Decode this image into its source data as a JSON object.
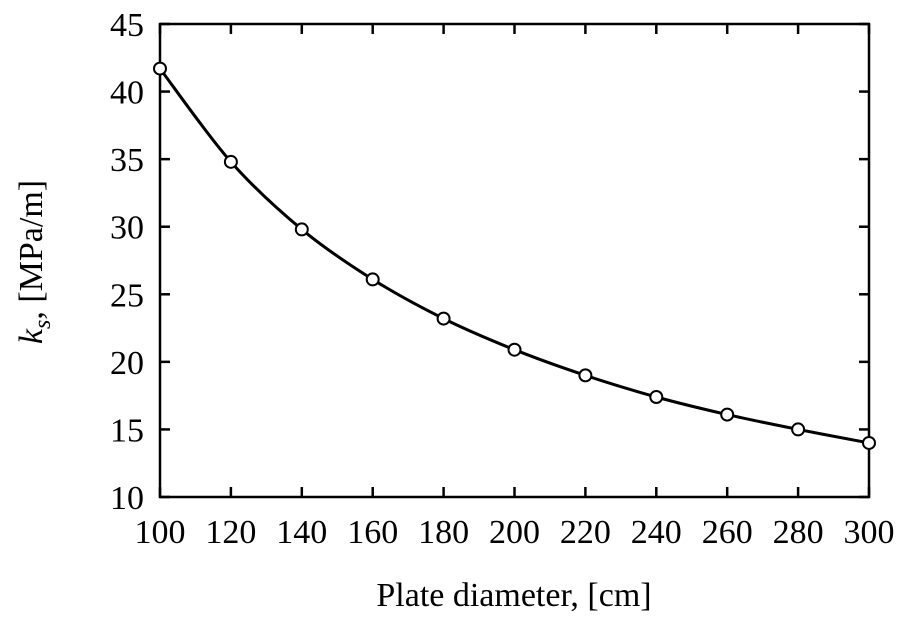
{
  "chart_data": {
    "type": "line",
    "title": "",
    "xlabel": "Plate diameter, [cm]",
    "ylabel": "k_s, [MPa/m]",
    "ylabel_parts": {
      "symbol": "k",
      "subscript": "s",
      "rest": ", [MPa/m]"
    },
    "xlim": [
      100,
      300
    ],
    "ylim": [
      10,
      45
    ],
    "xticks": [
      100,
      120,
      140,
      160,
      180,
      200,
      220,
      240,
      260,
      280,
      300
    ],
    "yticks": [
      10,
      15,
      20,
      25,
      30,
      35,
      40,
      45
    ],
    "grid": false,
    "legend": null,
    "series": [
      {
        "name": "k_s",
        "marker": "open-circle",
        "color": "#000000",
        "x": [
          100,
          120,
          140,
          160,
          180,
          200,
          220,
          240,
          260,
          280,
          300
        ],
        "y": [
          41.7,
          34.8,
          29.8,
          26.1,
          23.2,
          20.9,
          19.0,
          17.4,
          16.1,
          15.0,
          14.0
        ]
      }
    ]
  },
  "colors": {
    "line": "#000000",
    "marker_fill": "#ffffff",
    "background": "#ffffff"
  }
}
